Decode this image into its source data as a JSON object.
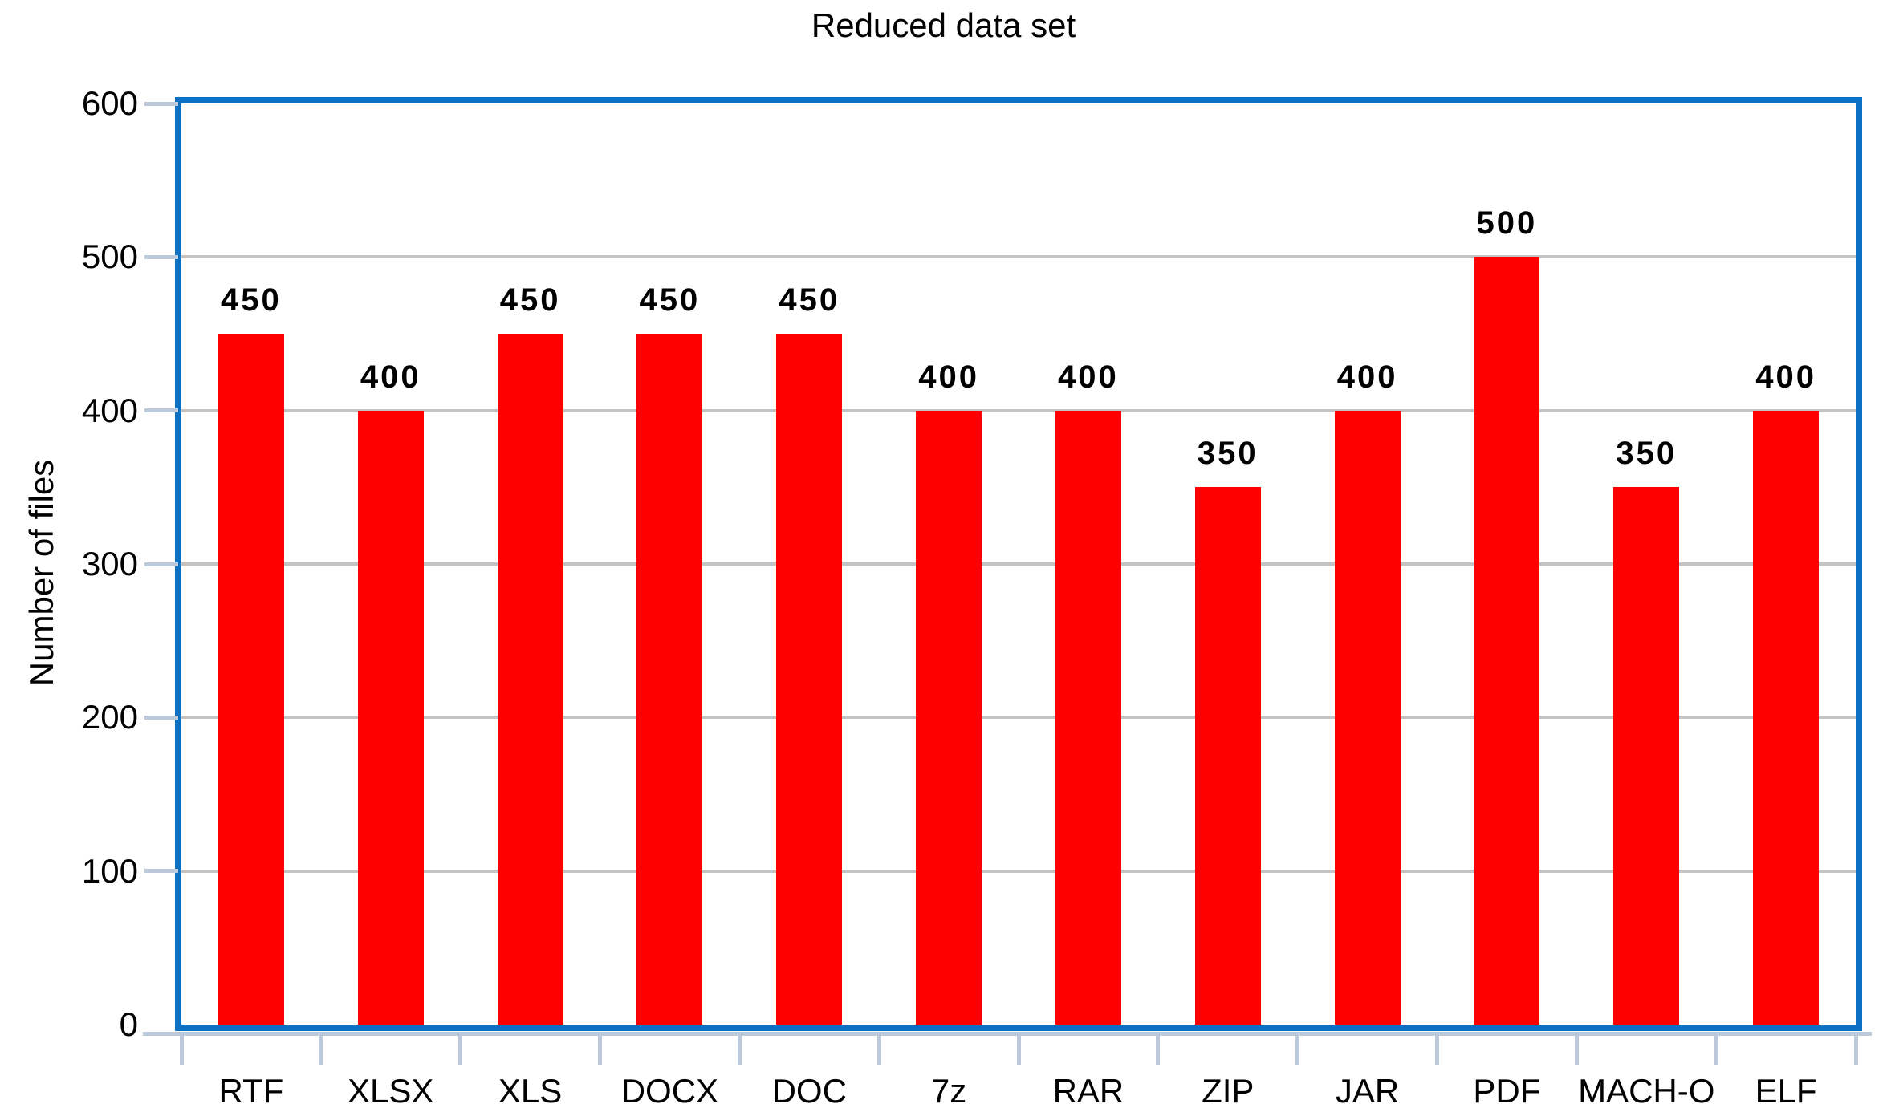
{
  "chart_data": {
    "type": "bar",
    "title": "Reduced data set",
    "xlabel": "",
    "ylabel": "Number of files",
    "categories": [
      "RTF",
      "XLSX",
      "XLS",
      "DOCX",
      "DOC",
      "7z",
      "RAR",
      "ZIP",
      "JAR",
      "PDF",
      "MACH-O",
      "ELF"
    ],
    "values": [
      450,
      400,
      450,
      450,
      450,
      400,
      400,
      350,
      400,
      500,
      350,
      400
    ],
    "data_labels_shown": true,
    "ylim": [
      0,
      600
    ],
    "yticks": [
      0,
      100,
      200,
      300,
      400,
      500,
      600
    ],
    "grid": true,
    "legend_position": "none",
    "colors": {
      "bar_fill": "#FF0000",
      "plot_border": "#0C71C2",
      "gridline": "#C3C3C3",
      "axis_tick": "#BCC9DB",
      "text": "#000000",
      "background": "#FFFFFF"
    }
  }
}
